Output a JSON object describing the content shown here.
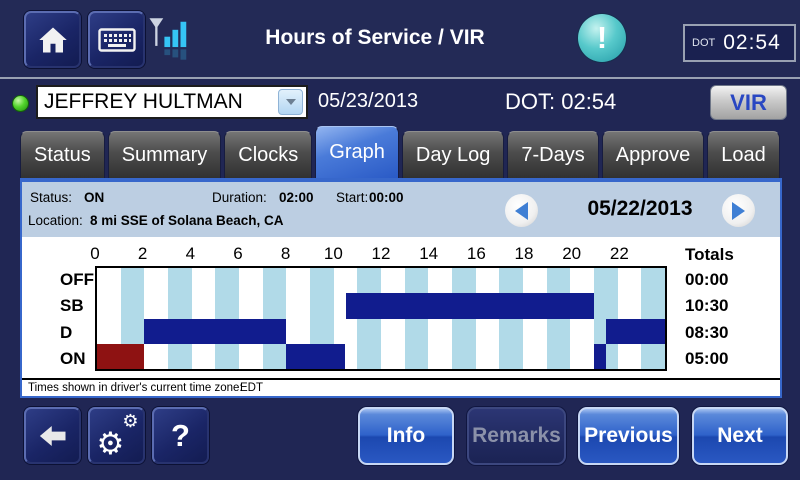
{
  "header": {
    "title": "Hours of Service / VIR",
    "dot_clock_label": "DOT",
    "dot_clock_time": "02:54"
  },
  "driver_bar": {
    "driver_name": "JEFFREY HULTMAN",
    "current_date": "05/23/2013",
    "dot_text": "DOT: 02:54",
    "vir_button_label": "VIR"
  },
  "tabs": [
    {
      "label": "Status",
      "selected": false
    },
    {
      "label": "Summary",
      "selected": false
    },
    {
      "label": "Clocks",
      "selected": false
    },
    {
      "label": "Graph",
      "selected": true
    },
    {
      "label": "Day Log",
      "selected": false
    },
    {
      "label": "7-Days",
      "selected": false
    },
    {
      "label": "Approve",
      "selected": false
    },
    {
      "label": "Load",
      "selected": false
    }
  ],
  "status_bar": {
    "status_label": "Status:",
    "status_value": "ON",
    "duration_label": "Duration:",
    "duration_value": "02:00",
    "start_label": "Start:",
    "start_value": "00:00",
    "location_label": "Location:",
    "location_value": "8 mi SSE of Solana Beach, CA",
    "nav_date": "05/22/2013"
  },
  "chart_data": {
    "type": "hos_timeline",
    "title": "Daily duty-status graph for 05/22/2013",
    "x_ticks": [
      0,
      2,
      4,
      6,
      8,
      10,
      12,
      14,
      16,
      18,
      20,
      22
    ],
    "x_range_hours": [
      0,
      24
    ],
    "rows": [
      "OFF",
      "SB",
      "D",
      "ON"
    ],
    "totals_label": "Totals",
    "totals": [
      "00:00",
      "10:30",
      "08:30",
      "05:00"
    ],
    "segments": [
      {
        "row": "ON",
        "start": 0,
        "end": 2,
        "state": "selected"
      },
      {
        "row": "D",
        "start": 2,
        "end": 8,
        "state": "normal"
      },
      {
        "row": "ON",
        "start": 8,
        "end": 10.5,
        "state": "normal"
      },
      {
        "row": "SB",
        "start": 10.5,
        "end": 21,
        "state": "normal"
      },
      {
        "row": "ON",
        "start": 21,
        "end": 21.5,
        "state": "normal"
      },
      {
        "row": "D",
        "start": 21.5,
        "end": 24,
        "state": "normal"
      }
    ],
    "colors": {
      "segment": "#111c8e",
      "segment_selected": "#8e1212",
      "stripe": "#b1dae8",
      "grid_stripe_hours": "odd"
    }
  },
  "footer_note": {
    "label": "Times shown in driver's current time zone:",
    "timezone": "EDT"
  },
  "bottom_bar": {
    "info_label": "Info",
    "remarks_label": "Remarks",
    "previous_label": "Previous",
    "next_label": "Next"
  }
}
